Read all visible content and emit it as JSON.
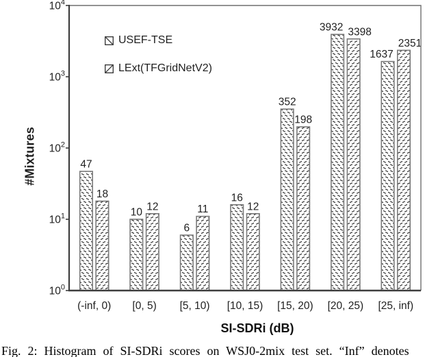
{
  "chart_data": {
    "type": "bar",
    "title": "",
    "xlabel": "SI-SDRi (dB)",
    "ylabel": "#Mixtures",
    "yscale": "log",
    "ylim": [
      1,
      10000
    ],
    "ytick_exponents": [
      0,
      1,
      2,
      3,
      4
    ],
    "grid": false,
    "legend_position": "upper-left-inside",
    "categories": [
      "(-inf, 0)",
      "[0, 5)",
      "[5, 10)",
      "[10, 15)",
      "[15, 20)",
      "[20, 25)",
      "[25, inf)"
    ],
    "series": [
      {
        "name": "USEF-TSE",
        "hatch": "backslash",
        "values": [
          47,
          10,
          6,
          16,
          352,
          3932,
          1637
        ]
      },
      {
        "name": "LExt(TFGridNetV2)",
        "hatch": "slash",
        "values": [
          18,
          12,
          11,
          12,
          198,
          3398,
          2351
        ]
      }
    ]
  },
  "caption": {
    "text": "Fig. 2: Histogram of SI-SDRi scores on WSJ0-2mix test set. “Inf” denotes"
  },
  "colors": {
    "background": "#ffffff",
    "text": "#1f1f1f",
    "axis": "#3d3d3d",
    "box": "#6f6f6f",
    "bar_outline": "#7a7a7a",
    "hatch": "#2f2f2f"
  }
}
